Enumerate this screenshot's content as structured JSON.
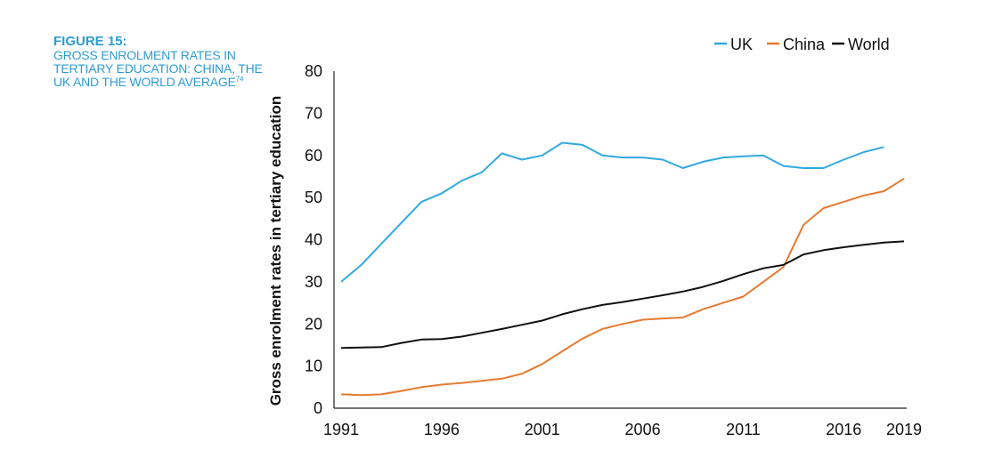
{
  "figure": {
    "label": "FIGURE 15:",
    "title": "GROSS ENROLMENT RATES IN TERTIARY EDUCATION: CHINA, THE UK AND THE WORLD AVERAGE",
    "footnote": "74"
  },
  "chart_data": {
    "type": "line",
    "title": "",
    "xlabel": "",
    "ylabel": "Gross enrolment rates in tertiary education",
    "xlim": [
      1991,
      2019
    ],
    "ylim": [
      0,
      80
    ],
    "yticks": [
      0,
      10,
      20,
      30,
      40,
      50,
      60,
      70,
      80
    ],
    "xticks": [
      1991,
      1996,
      2001,
      2006,
      2011,
      2016,
      2019
    ],
    "grid": false,
    "legend_position": "top-right",
    "series": [
      {
        "name": "UK",
        "color": "#31a9df",
        "points": [
          [
            1991,
            30
          ],
          [
            1992,
            34
          ],
          [
            1993,
            39
          ],
          [
            1994,
            44
          ],
          [
            1995,
            49
          ],
          [
            1996,
            51
          ],
          [
            1997,
            54
          ],
          [
            1998,
            56
          ],
          [
            1999,
            60.5
          ],
          [
            2000,
            59
          ],
          [
            2001,
            60
          ],
          [
            2002,
            63
          ],
          [
            2003,
            62.5
          ],
          [
            2004,
            60
          ],
          [
            2005,
            59.5
          ],
          [
            2006,
            59.5
          ],
          [
            2007,
            59
          ],
          [
            2008,
            57
          ],
          [
            2009,
            58.5
          ],
          [
            2010,
            59.5
          ],
          [
            2011,
            59.8
          ],
          [
            2012,
            60
          ],
          [
            2013,
            57.5
          ],
          [
            2014,
            57
          ],
          [
            2015,
            57
          ],
          [
            2016,
            59
          ],
          [
            2017,
            60.8
          ],
          [
            2018,
            62
          ]
        ]
      },
      {
        "name": "China",
        "color": "#e57b30",
        "points": [
          [
            1991,
            3.3
          ],
          [
            1992,
            3.1
          ],
          [
            1993,
            3.3
          ],
          [
            1994,
            4.1
          ],
          [
            1995,
            5
          ],
          [
            1996,
            5.6
          ],
          [
            1997,
            6
          ],
          [
            1998,
            6.5
          ],
          [
            1999,
            7
          ],
          [
            2000,
            8.2
          ],
          [
            2001,
            10.5
          ],
          [
            2002,
            13.5
          ],
          [
            2003,
            16.5
          ],
          [
            2004,
            18.8
          ],
          [
            2005,
            20
          ],
          [
            2006,
            21
          ],
          [
            2007,
            21.3
          ],
          [
            2008,
            21.5
          ],
          [
            2009,
            23.5
          ],
          [
            2010,
            25
          ],
          [
            2011,
            26.5
          ],
          [
            2012,
            30
          ],
          [
            2013,
            33.5
          ],
          [
            2014,
            43.5
          ],
          [
            2015,
            47.5
          ],
          [
            2016,
            49
          ],
          [
            2017,
            50.5
          ],
          [
            2018,
            51.5
          ],
          [
            2019,
            54.5
          ]
        ]
      },
      {
        "name": "World",
        "color": "#111111",
        "points": [
          [
            1991,
            14.3
          ],
          [
            1992,
            14.4
          ],
          [
            1993,
            14.5
          ],
          [
            1994,
            15.5
          ],
          [
            1995,
            16.3
          ],
          [
            1996,
            16.4
          ],
          [
            1997,
            17
          ],
          [
            1998,
            17.9
          ],
          [
            1999,
            18.8
          ],
          [
            2000,
            19.8
          ],
          [
            2001,
            20.8
          ],
          [
            2002,
            22.3
          ],
          [
            2003,
            23.5
          ],
          [
            2004,
            24.5
          ],
          [
            2005,
            25.2
          ],
          [
            2006,
            26
          ],
          [
            2007,
            26.8
          ],
          [
            2008,
            27.7
          ],
          [
            2009,
            28.8
          ],
          [
            2010,
            30.2
          ],
          [
            2011,
            31.8
          ],
          [
            2012,
            33.2
          ],
          [
            2013,
            34
          ],
          [
            2014,
            36.5
          ],
          [
            2015,
            37.5
          ],
          [
            2016,
            38.2
          ],
          [
            2017,
            38.8
          ],
          [
            2018,
            39.3
          ],
          [
            2019,
            39.6
          ]
        ]
      }
    ]
  }
}
